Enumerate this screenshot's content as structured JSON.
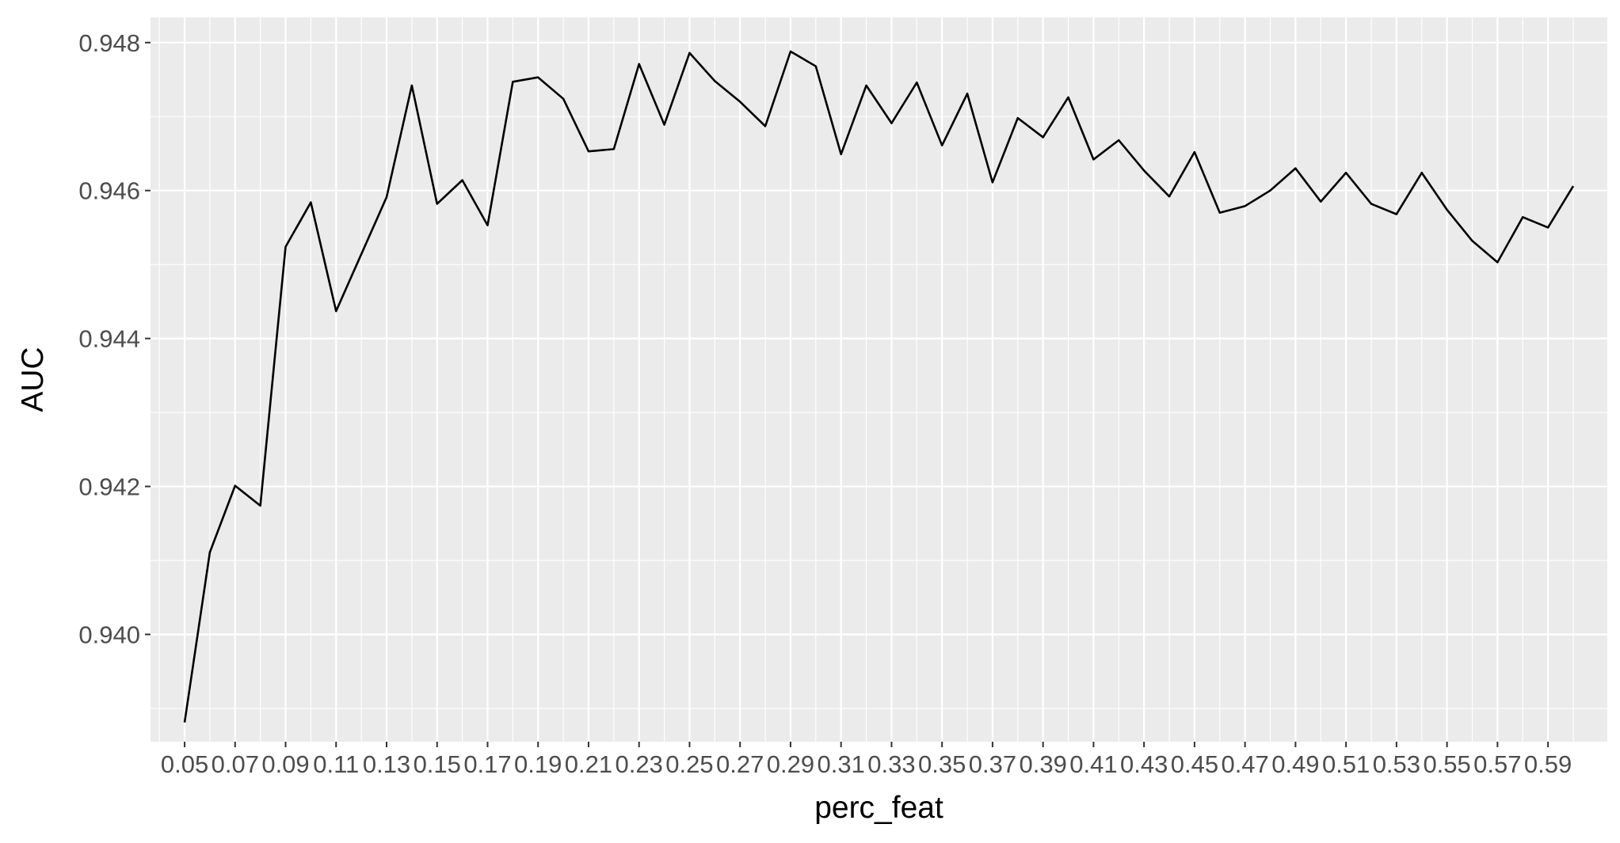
{
  "chart_data": {
    "type": "line",
    "xlabel": "perc_feat",
    "ylabel": "AUC",
    "xlim": [
      0.0365,
      0.6135
    ],
    "ylim": [
      0.93855,
      0.94834
    ],
    "x_ticks": [
      "0.05",
      "0.07",
      "0.09",
      "0.11",
      "0.13",
      "0.15",
      "0.17",
      "0.19",
      "0.21",
      "0.23",
      "0.25",
      "0.27",
      "0.29",
      "0.31",
      "0.33",
      "0.35",
      "0.37",
      "0.39",
      "0.41",
      "0.43",
      "0.45",
      "0.47",
      "0.49",
      "0.51",
      "0.53",
      "0.55",
      "0.57",
      "0.59"
    ],
    "y_ticks": [
      "0.940",
      "0.942",
      "0.944",
      "0.946",
      "0.948"
    ],
    "grid": true,
    "legend": "none",
    "series": [
      {
        "x": [
          0.05,
          0.06,
          0.07,
          0.08,
          0.09,
          0.1,
          0.11,
          0.12,
          0.13,
          0.14,
          0.15,
          0.16,
          0.17,
          0.18,
          0.19,
          0.2,
          0.21,
          0.22,
          0.23,
          0.24,
          0.25,
          0.26,
          0.27,
          0.28,
          0.29,
          0.3,
          0.31,
          0.32,
          0.33,
          0.34,
          0.35,
          0.36,
          0.37,
          0.38,
          0.39,
          0.4,
          0.41,
          0.42,
          0.43,
          0.44,
          0.45,
          0.46,
          0.47,
          0.48,
          0.49,
          0.5,
          0.51,
          0.52,
          0.53,
          0.54,
          0.55,
          0.56,
          0.57,
          0.58,
          0.59,
          0.6
        ],
        "values": [
          0.93881,
          0.94111,
          0.94201,
          0.94174,
          0.94524,
          0.94584,
          0.94437,
          0.94514,
          0.94591,
          0.94742,
          0.94582,
          0.94614,
          0.94553,
          0.94747,
          0.94753,
          0.94724,
          0.94653,
          0.94656,
          0.94771,
          0.94689,
          0.94786,
          0.94748,
          0.9472,
          0.94687,
          0.94788,
          0.94768,
          0.94649,
          0.94742,
          0.94691,
          0.94746,
          0.94661,
          0.94731,
          0.94611,
          0.94698,
          0.94672,
          0.94726,
          0.94642,
          0.94668,
          0.94627,
          0.94592,
          0.94652,
          0.9457,
          0.94579,
          0.946,
          0.9463,
          0.94585,
          0.94624,
          0.94582,
          0.94568,
          0.94624,
          0.94574,
          0.94532,
          0.94503,
          0.94564,
          0.9455,
          0.94606
        ],
        "color": "#000000"
      }
    ],
    "colors": {
      "panel": "#ebebeb",
      "grid_major": "#ffffff",
      "line": "#000000",
      "tick_label": "#4d4d4d",
      "axis_title": "#000000"
    }
  }
}
